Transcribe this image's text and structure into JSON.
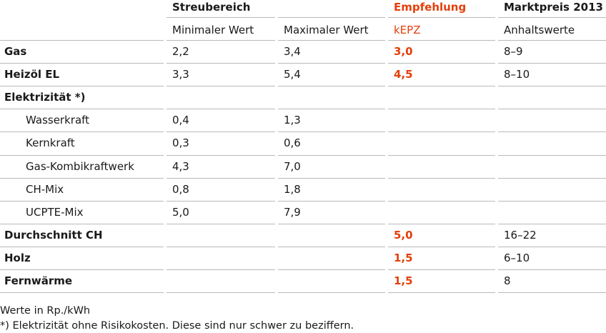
{
  "header": {
    "group_streubereich": "Streubereich",
    "group_empfehlung": "Empfehlung",
    "group_marktpreis": "Marktpreis 2013",
    "col_min": "Minimaler Wert",
    "col_max": "Maximaler Wert",
    "col_kepz": "kEPZ",
    "col_anhalt": "Anhaltswerte"
  },
  "rows": [
    {
      "label": "Gas",
      "min": "2,2",
      "max": "3,4",
      "kepz": "3,0",
      "markt": "8–9"
    },
    {
      "label": "Heizöl EL",
      "min": "3,3",
      "max": "5,4",
      "kepz": "4,5",
      "markt": "8–10"
    },
    {
      "label": "Elektrizität *)",
      "min": "",
      "max": "",
      "kepz": "",
      "markt": ""
    },
    {
      "label": "Wasserkraft",
      "min": "0,4",
      "max": "1,3",
      "kepz": "",
      "markt": ""
    },
    {
      "label": "Kernkraft",
      "min": "0,3",
      "max": "0,6",
      "kepz": "",
      "markt": ""
    },
    {
      "label": "Gas-Kombikraftwerk",
      "min": "4,3",
      "max": "7,0",
      "kepz": "",
      "markt": ""
    },
    {
      "label": "CH-Mix",
      "min": "0,8",
      "max": "1,8",
      "kepz": "",
      "markt": ""
    },
    {
      "label": "UCPTE-Mix",
      "min": "5,0",
      "max": "7,9",
      "kepz": "",
      "markt": ""
    },
    {
      "label": "Durchschnitt CH",
      "min": "",
      "max": "",
      "kepz": "5,0",
      "markt": "16–22"
    },
    {
      "label": "Holz",
      "min": "",
      "max": "",
      "kepz": "1,5",
      "markt": "6–10"
    },
    {
      "label": "Fernwärme",
      "min": "",
      "max": "",
      "kepz": "1,5",
      "markt": "8"
    }
  ],
  "footnotes": {
    "units": "Werte in Rp./kWh",
    "note": "*) Elektrizität ohne Risikokosten. Diese sind nur schwer zu beziffern."
  },
  "colors": {
    "accent": "#e3400c",
    "rule": "#b9b9b9",
    "text": "#1a1a1a"
  }
}
